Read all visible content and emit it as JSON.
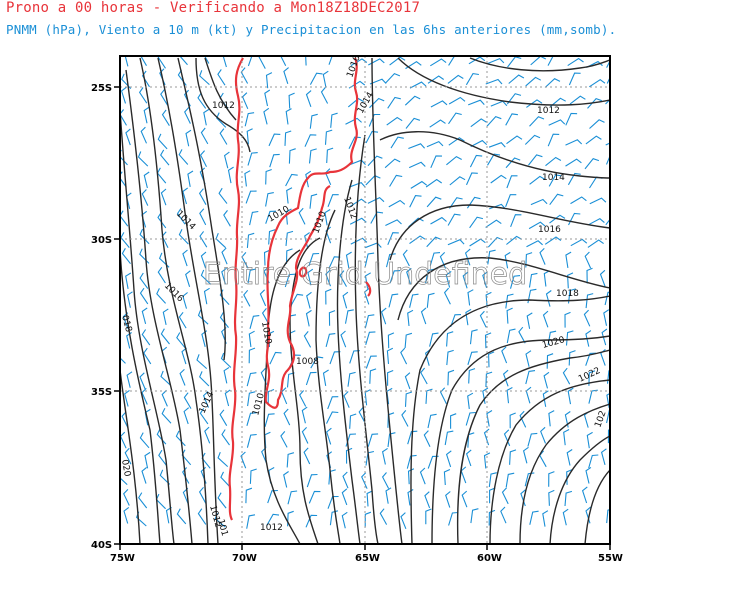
{
  "header": {
    "title": "Prono a 00 horas - Verificando a Mon18Z18DEC2017",
    "subtitle": "PNMM (hPa), Viento a 10 m (kt) y Precipitacion en las 6hs anteriores (mm,somb)."
  },
  "map": {
    "x_ticks": [
      "75W",
      "70W",
      "65W",
      "60W",
      "55W"
    ],
    "y_ticks": [
      "25S",
      "30S",
      "35S",
      "40S"
    ],
    "watermark": "Entire Grid Undefined",
    "contour_labels": [
      "1016",
      "1014",
      "1012",
      "1012",
      "1014",
      "1016",
      "1018",
      "1020",
      "1022",
      "102",
      "1012",
      "1014",
      "1016",
      "018",
      "1014",
      "1010",
      "1010",
      "1008",
      "1010",
      "1010",
      "1012",
      "1012",
      "101",
      "020"
    ]
  },
  "colors": {
    "title": "#e8343a",
    "subtitle": "#1a8fd6",
    "coast": "#e8343a",
    "wind": "#1a8fd6",
    "isobar": "#2a2a2a",
    "grid": "#999999"
  }
}
